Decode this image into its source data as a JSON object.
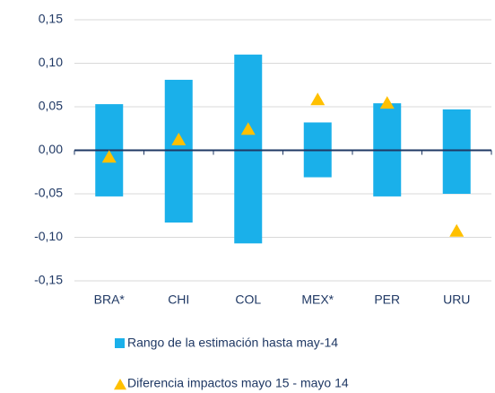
{
  "chart_data": {
    "type": "floating-bar",
    "categories": [
      "BRA*",
      "CHI",
      "COL",
      "MEX*",
      "PER",
      "URU"
    ],
    "series": [
      {
        "name": "Rango de la estimación hasta may-14",
        "color": "#1ab0ea",
        "low": [
          -0.053,
          -0.083,
          -0.107,
          -0.031,
          -0.053,
          -0.05
        ],
        "high": [
          0.053,
          0.081,
          0.11,
          0.032,
          0.054,
          0.047
        ]
      },
      {
        "name": "Diferencia impactos mayo 15 - mayo 14",
        "color": "#ffc000",
        "values": [
          -0.008,
          0.012,
          0.024,
          0.058,
          0.054,
          -0.093
        ]
      }
    ],
    "ylim": [
      -0.15,
      0.15
    ],
    "yticks": [
      {
        "value": -0.15,
        "label": "-0,15"
      },
      {
        "value": -0.1,
        "label": "-0,10"
      },
      {
        "value": -0.05,
        "label": "-0,05"
      },
      {
        "value": 0,
        "label": "0,00"
      },
      {
        "value": 0.05,
        "label": "0,05"
      },
      {
        "value": 0.1,
        "label": "0,10"
      },
      {
        "value": 0.15,
        "label": "0,15"
      }
    ],
    "grid": true
  }
}
